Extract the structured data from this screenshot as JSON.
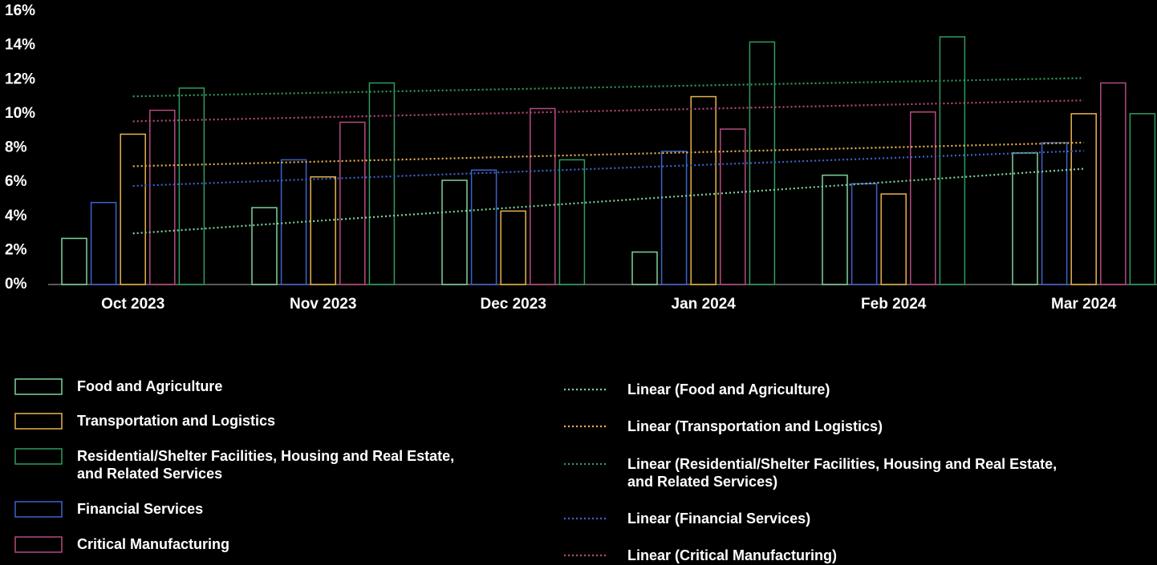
{
  "chart_data": {
    "type": "bar",
    "categories": [
      "Oct 2023",
      "Nov 2023",
      "Dec 2023",
      "Jan 2024",
      "Feb 2024",
      "Mar 2024"
    ],
    "series": [
      {
        "name": "Food and Agriculture",
        "trend_name": "Linear (Food and Agriculture)",
        "color": "#7fd39a",
        "values": [
          2.7,
          4.5,
          6.1,
          1.9,
          6.4,
          7.7
        ]
      },
      {
        "name": "Financial Services",
        "trend_name": "Linear (Financial Services)",
        "color": "#3d62cc",
        "values": [
          4.8,
          7.3,
          6.7,
          7.8,
          5.9,
          8.3
        ]
      },
      {
        "name": "Transportation and Logistics",
        "trend_name": "Linear (Transportation and Logistics)",
        "color": "#e9b24c",
        "values": [
          8.8,
          6.3,
          4.3,
          11.0,
          5.3,
          10.0
        ]
      },
      {
        "name": "Critical Manufacturing",
        "trend_name": "Linear (Critical Manufacturing)",
        "color": "#b54a80",
        "values": [
          10.2,
          9.5,
          10.3,
          9.1,
          10.1,
          11.8
        ]
      },
      {
        "name": "Residential/Shelter Facilities, Housing and Real Estate, and Related Services",
        "trend_name": "Linear (Residential/Shelter Facilities, Housing and Real Estate, and Related Services)",
        "color": "#2f9c5c",
        "values": [
          11.5,
          11.8,
          7.3,
          14.2,
          14.5,
          10.0
        ]
      }
    ],
    "ylim": [
      0,
      16
    ],
    "yticks": [
      {
        "value": 0,
        "label": "0%"
      },
      {
        "value": 2,
        "label": "2%"
      },
      {
        "value": 4,
        "label": "4%"
      },
      {
        "value": 6,
        "label": "6%"
      },
      {
        "value": 8,
        "label": "8%"
      },
      {
        "value": 10,
        "label": "10%"
      },
      {
        "value": 12,
        "label": "12%"
      },
      {
        "value": 14,
        "label": "14%"
      },
      {
        "value": 16,
        "label": "16%"
      }
    ],
    "trendlines": "linear",
    "grid": false
  }
}
